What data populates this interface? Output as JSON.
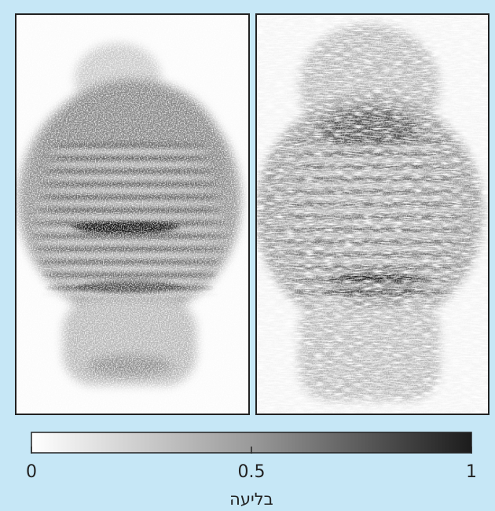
{
  "colorbar": {
    "label": "בליעה",
    "lim": [
      0,
      1
    ],
    "ticks": [
      0,
      0.5,
      1
    ]
  }
}
